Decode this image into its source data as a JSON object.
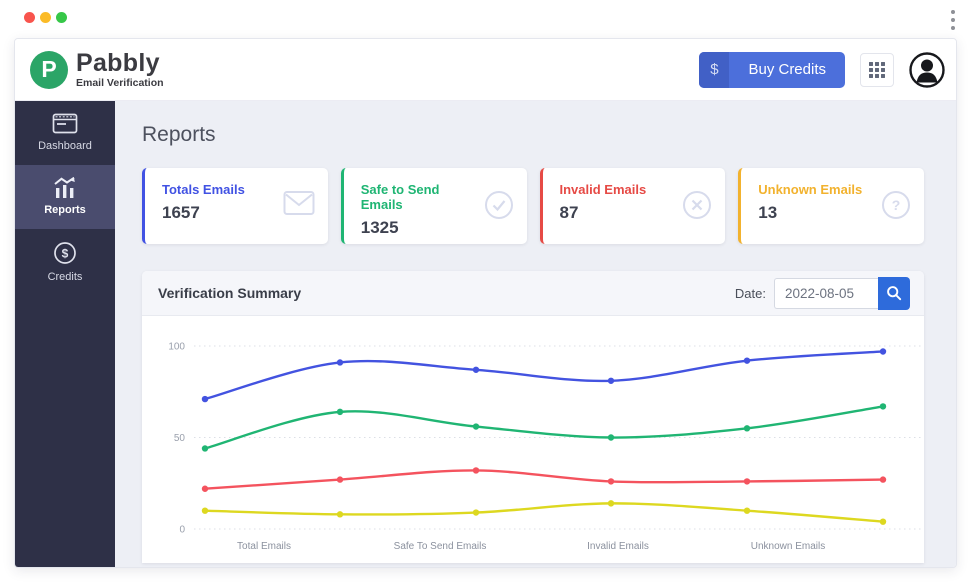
{
  "chrome": {
    "window_controls": {
      "close": "#f8544d",
      "minimize": "#fbbb27",
      "maximize": "#36c748"
    }
  },
  "header": {
    "brand": {
      "logo_letter": "P",
      "name": "Pabbly",
      "tagline": "Email Verification",
      "logo_color": "#2ba567"
    },
    "buy_credits": {
      "currency": "$",
      "label": "Buy Credits",
      "color": "#4c6fdb"
    }
  },
  "sidebar": {
    "items": [
      {
        "label": "Dashboard",
        "icon": "dashboard-icon",
        "active": false
      },
      {
        "label": "Reports",
        "icon": "reports-icon",
        "active": true
      },
      {
        "label": "Credits",
        "icon": "credits-icon",
        "active": false
      }
    ]
  },
  "page": {
    "title": "Reports"
  },
  "stats": {
    "cards": [
      {
        "title": "Totals Emails",
        "value": "1657",
        "icon": "envelope-icon",
        "color": "#4152e3"
      },
      {
        "title": "Safe to Send Emails",
        "value": "1325",
        "icon": "check-circle-icon",
        "color": "#1fb573"
      },
      {
        "title": "Invalid Emails",
        "value": "87",
        "icon": "x-circle-icon",
        "color": "#e64a45"
      },
      {
        "title": "Unknown Emails",
        "value": "13",
        "icon": "question-circle-icon",
        "color": "#f2b22e"
      }
    ]
  },
  "summary": {
    "title": "Verification Summary",
    "date_label": "Date:",
    "date_value": "2022-08-05"
  },
  "glyphs": {
    "dollar": "$",
    "question": "?"
  },
  "chart_data": {
    "type": "line",
    "title": "Verification Summary",
    "x_labels": [
      "Total Emails",
      "Safe To Send Emails",
      "Invalid Emails",
      "Unknown Emails"
    ],
    "y_ticks": [
      0,
      50,
      100
    ],
    "ylim": [
      0,
      100
    ],
    "grid": "dotted-horizontal",
    "legend": "none",
    "smooth": true,
    "series": [
      {
        "name": "total-emails",
        "color": "#4353e0",
        "values": [
          71,
          91,
          87,
          81,
          92,
          97
        ]
      },
      {
        "name": "safe-to-send-emails",
        "color": "#20b573",
        "values": [
          44,
          64,
          56,
          50,
          55,
          67
        ]
      },
      {
        "name": "invalid-emails",
        "color": "#f4535e",
        "values": [
          22,
          27,
          32,
          26,
          26,
          27
        ]
      },
      {
        "name": "unknown-emails",
        "color": "#ddd820",
        "values": [
          10,
          8,
          9,
          14,
          10,
          4
        ]
      }
    ]
  }
}
